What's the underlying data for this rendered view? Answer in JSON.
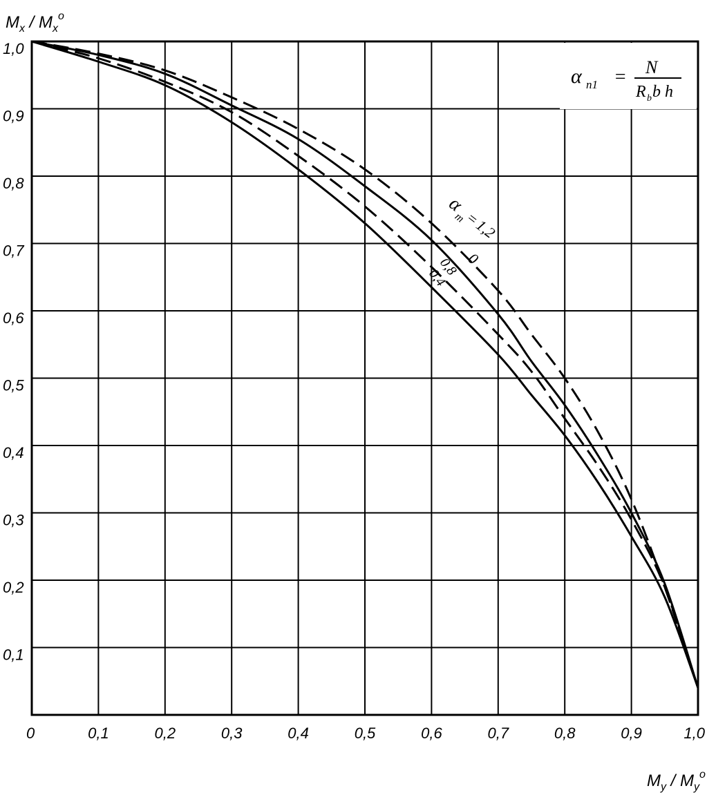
{
  "chart_data": {
    "type": "line",
    "title": "",
    "xlabel": "My/My°",
    "ylabel": "Mx/Mx°",
    "xlim": [
      0,
      1.0
    ],
    "ylim": [
      0,
      1.0
    ],
    "grid": true,
    "x_ticks": [
      "0",
      "0,1",
      "0,2",
      "0,3",
      "0,4",
      "0,5",
      "0,6",
      "0,7",
      "0,8",
      "0,9",
      "1,0"
    ],
    "y_ticks": [
      "0,1",
      "0,2",
      "0,3",
      "0,4",
      "0,5",
      "0,6",
      "0,7",
      "0,8",
      "0,9",
      "1,0"
    ],
    "formula": {
      "lhs": "α",
      "lhs_sub": "n1",
      "eq": "=",
      "numerator": "N",
      "denominator": "R",
      "denominator_sub": "b",
      "denominator_rest": " b h"
    },
    "series_label_prefix": "α",
    "series_label_prefix_sub": "m",
    "series_label_eq": " = ",
    "series": [
      {
        "name": "1,2",
        "style": "dashed",
        "x": [
          0,
          0.1,
          0.2,
          0.3,
          0.4,
          0.5,
          0.6,
          0.7,
          0.75,
          0.8,
          0.85,
          0.9,
          0.95,
          1.0
        ],
        "y": [
          1.0,
          0.982,
          0.957,
          0.917,
          0.87,
          0.81,
          0.73,
          0.63,
          0.565,
          0.5,
          0.42,
          0.32,
          0.19,
          0.04
        ]
      },
      {
        "name": "0",
        "style": "solid",
        "x": [
          0,
          0.1,
          0.2,
          0.3,
          0.4,
          0.5,
          0.6,
          0.7,
          0.75,
          0.8,
          0.85,
          0.9,
          0.95,
          1.0
        ],
        "y": [
          1.0,
          0.98,
          0.952,
          0.905,
          0.855,
          0.785,
          0.705,
          0.595,
          0.525,
          0.46,
          0.385,
          0.3,
          0.195,
          0.04
        ]
      },
      {
        "name": "0,8",
        "style": "dashed",
        "x": [
          0,
          0.1,
          0.2,
          0.3,
          0.4,
          0.5,
          0.6,
          0.7,
          0.75,
          0.8,
          0.85,
          0.9,
          0.95,
          1.0
        ],
        "y": [
          1.0,
          0.975,
          0.94,
          0.895,
          0.83,
          0.755,
          0.665,
          0.565,
          0.51,
          0.44,
          0.37,
          0.29,
          0.19,
          0.04
        ]
      },
      {
        "name": "0,4",
        "style": "solid",
        "x": [
          0,
          0.1,
          0.2,
          0.3,
          0.4,
          0.5,
          0.6,
          0.7,
          0.75,
          0.8,
          0.85,
          0.9,
          0.95,
          1.0
        ],
        "y": [
          1.0,
          0.97,
          0.935,
          0.88,
          0.81,
          0.73,
          0.635,
          0.535,
          0.475,
          0.415,
          0.345,
          0.265,
          0.175,
          0.04
        ]
      }
    ]
  }
}
